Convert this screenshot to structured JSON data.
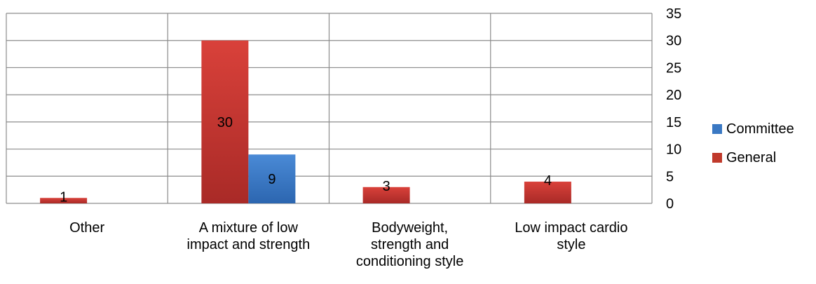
{
  "chart_data": {
    "type": "bar",
    "categories": [
      "Other",
      "A mixture of low impact and strength",
      "Bodyweight, strength and conditioning style",
      "Low impact cardio style"
    ],
    "category_labels": [
      "Other",
      "A mixture of low\nimpact and strength",
      "Bodyweight,\nstrength and\nconditioning style",
      "Low impact cardio\nstyle"
    ],
    "series": [
      {
        "name": "General",
        "color": "#c0392b",
        "values": [
          1,
          30,
          3,
          4
        ]
      },
      {
        "name": "Committee",
        "color": "#3a78c3",
        "values": [
          0,
          9,
          0,
          0
        ]
      }
    ],
    "data_labels": {
      "General": [
        "1",
        "30",
        "3",
        "4"
      ],
      "Committee": [
        "",
        "9",
        "",
        ""
      ]
    },
    "ylim": [
      0,
      35
    ],
    "yticks": [
      0,
      5,
      10,
      15,
      20,
      25,
      30,
      35
    ],
    "y_axis_side": "right",
    "grid": true,
    "legend_position": "right"
  }
}
